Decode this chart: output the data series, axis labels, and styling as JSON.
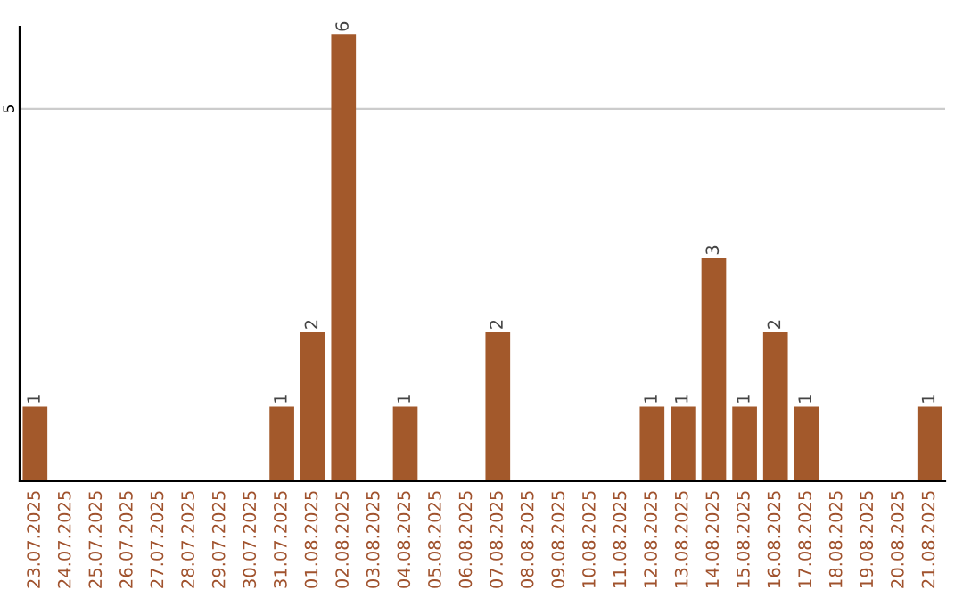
{
  "chart_data": {
    "type": "bar",
    "categories": [
      "23.07.2025",
      "24.07.2025",
      "25.07.2025",
      "26.07.2025",
      "27.07.2025",
      "28.07.2025",
      "29.07.2025",
      "30.07.2025",
      "31.07.2025",
      "01.08.2025",
      "02.08.2025",
      "03.08.2025",
      "04.08.2025",
      "05.08.2025",
      "06.08.2025",
      "07.08.2025",
      "08.08.2025",
      "09.08.2025",
      "10.08.2025",
      "11.08.2025",
      "12.08.2025",
      "13.08.2025",
      "14.08.2025",
      "15.08.2025",
      "16.08.2025",
      "17.08.2025",
      "18.08.2025",
      "19.08.2025",
      "20.08.2025",
      "21.08.2025"
    ],
    "values": [
      1,
      0,
      0,
      0,
      0,
      0,
      0,
      0,
      1,
      2,
      6,
      0,
      1,
      0,
      0,
      2,
      0,
      0,
      0,
      0,
      1,
      1,
      3,
      1,
      2,
      1,
      0,
      0,
      0,
      1
    ],
    "value_labels": [
      "1",
      null,
      null,
      null,
      null,
      null,
      null,
      null,
      "1",
      "2",
      "6",
      null,
      "1",
      null,
      null,
      "2",
      null,
      null,
      null,
      null,
      "1",
      "1",
      "3",
      "1",
      "2",
      "1",
      null,
      null,
      null,
      "1"
    ],
    "color": "#a3592b",
    "ylim": [
      0,
      6.1
    ],
    "yticks": [
      5
    ],
    "grid": "y"
  }
}
